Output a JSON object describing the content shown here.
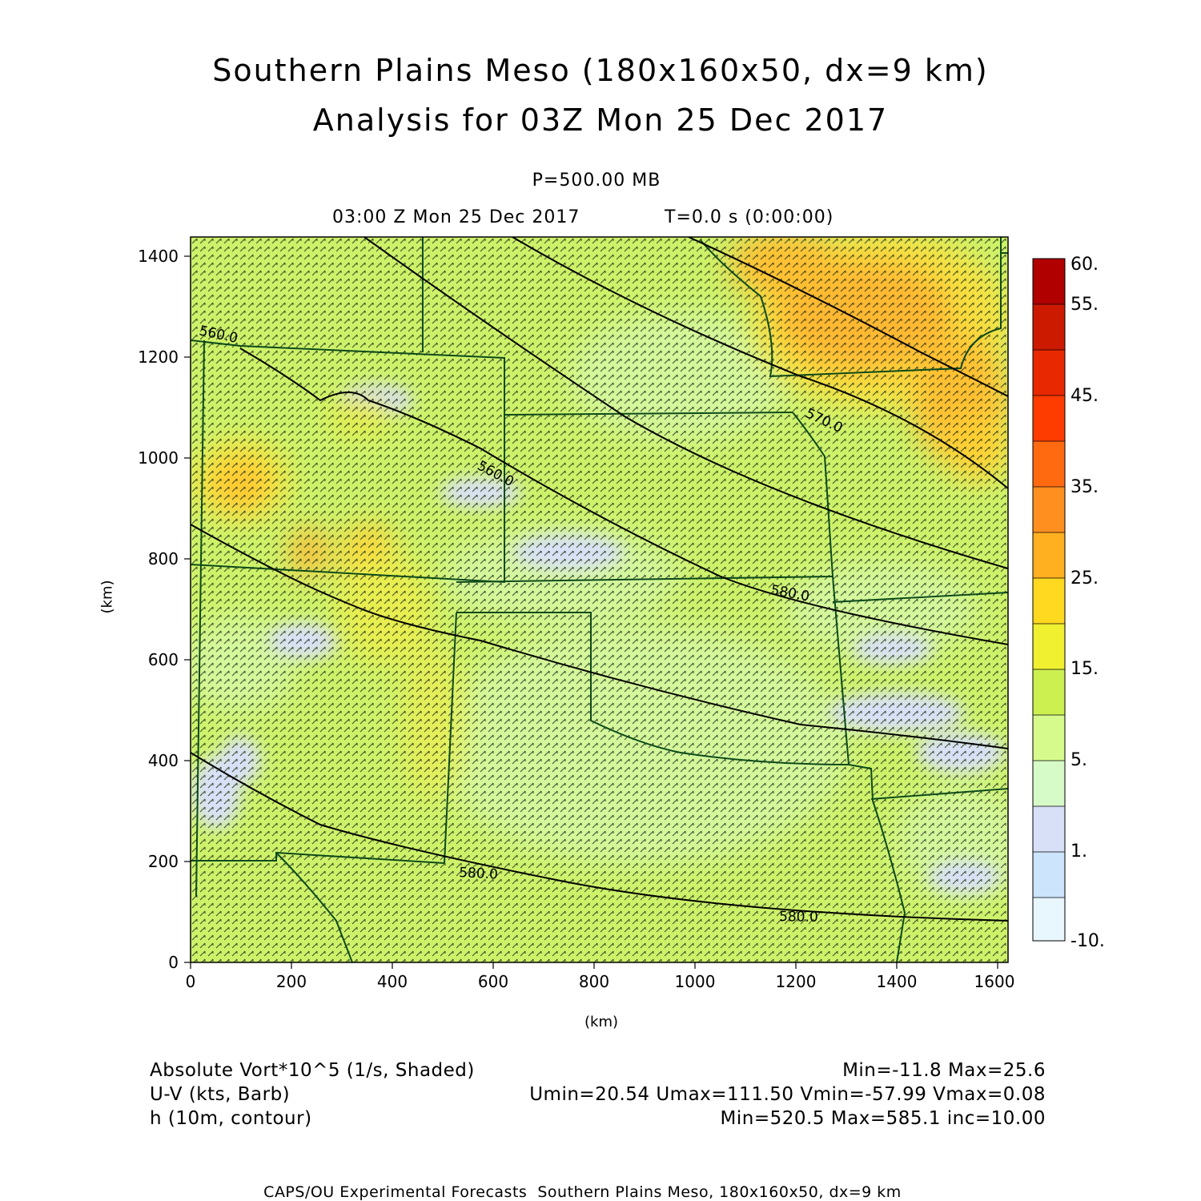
{
  "title": {
    "line1": "Southern Plains Meso (180x160x50, dx=9 km)",
    "line2": "Analysis for 03Z Mon 25 Dec 2017"
  },
  "subtitle": {
    "level": "P=500.00 MB",
    "time": "03:00 Z Mon 25 Dec 2017",
    "elapsed": "T=0.0 s (0:00:00)"
  },
  "axes": {
    "x_label": "(km)",
    "y_label": "(km)",
    "x_range": [
      0,
      1620
    ],
    "y_range": [
      0,
      1440
    ],
    "x_ticks": [
      "0",
      "200",
      "400",
      "600",
      "800",
      "1000",
      "1200",
      "1400",
      "1600"
    ],
    "y_ticks": [
      "0",
      "200",
      "400",
      "600",
      "800",
      "1000",
      "1200",
      "1400"
    ]
  },
  "colorbar": {
    "labels": [
      "60.",
      "55.",
      "45.",
      "35.",
      "25.",
      "15.",
      "5.",
      "1.",
      "-10."
    ],
    "colors": [
      "#b00000",
      "#cc1a00",
      "#e02800",
      "#ff3c00",
      "#ff6a00",
      "#ff9020",
      "#ffb020",
      "#ffd820",
      "#f0f030",
      "#ccf050",
      "#d6fa8c",
      "#d6fac8",
      "#d8e0f8",
      "#cce4fc",
      "#e8f6fe"
    ]
  },
  "contours": [
    {
      "label": "560.0"
    },
    {
      "label": "560.0"
    },
    {
      "label": "570.0"
    },
    {
      "label": "580.0"
    },
    {
      "label": "580.0"
    }
  ],
  "legend": {
    "vort_label": "Absolute Vort*10^5 (1/s, Shaded)",
    "vort_stats": "Min=-11.8 Max=25.6",
    "wind_label": "U-V (kts, Barb)",
    "wind_stats": "Umin=20.54 Umax=111.50 Vmin=-57.99 Vmax=0.08",
    "height_label": "h (10m, contour)",
    "height_stats": "Min=520.5 Max=585.1 inc=10.00"
  },
  "footer": "CAPS/OU Experimental Forecasts  Southern Plains Meso, 180x160x50, dx=9 km",
  "colors": {
    "background": "#cdf26a",
    "contour": "#000000",
    "borders": "#0c4a1a"
  }
}
